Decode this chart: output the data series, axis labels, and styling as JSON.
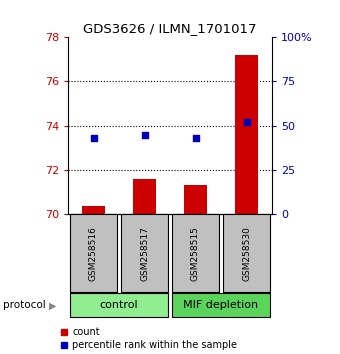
{
  "title": "GDS3626 / ILMN_1701017",
  "samples": [
    "GSM258516",
    "GSM258517",
    "GSM258515",
    "GSM258530"
  ],
  "groups": [
    "control",
    "control",
    "MIF depletion",
    "MIF depletion"
  ],
  "group_colors": {
    "control": "#90EE90",
    "MIF depletion": "#5AD45A"
  },
  "count_values": [
    70.35,
    71.6,
    71.3,
    77.2
  ],
  "percentile_values": [
    43,
    45,
    43,
    52
  ],
  "ylim_left": [
    70,
    78
  ],
  "ylim_right": [
    0,
    100
  ],
  "yticks_left": [
    70,
    72,
    74,
    76,
    78
  ],
  "yticks_right": [
    0,
    25,
    50,
    75,
    100
  ],
  "ytick_labels_right": [
    "0",
    "25",
    "50",
    "75",
    "100%"
  ],
  "bar_color": "#CC0000",
  "dot_color": "#0000BB",
  "background_color": "#ffffff",
  "sample_box_color": "#C0C0C0",
  "protocol_label": "protocol",
  "legend_count_label": "count",
  "legend_percentile_label": "percentile rank within the sample"
}
